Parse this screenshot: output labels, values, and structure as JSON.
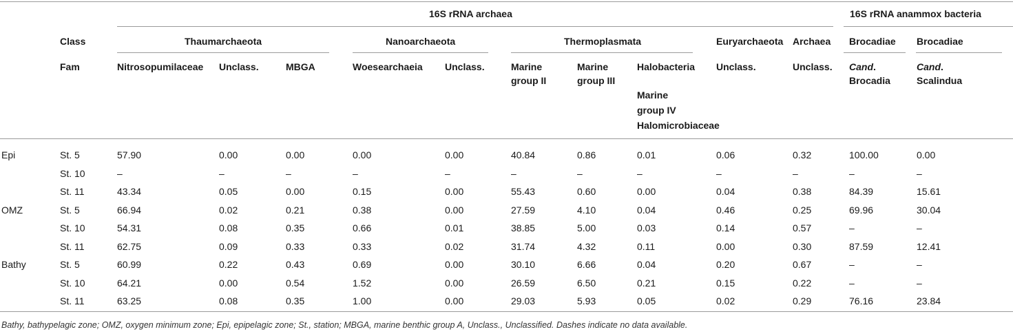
{
  "header": {
    "group_archaea": "16S rRNA archaea",
    "group_anammox": "16S rRNA anammox bacteria",
    "class_label": "Class",
    "fam_label": "Fam",
    "classes": {
      "thaum": "Thaumarchaeota",
      "nano": "Nanoarchaeota",
      "thermo": "Thermoplasmata",
      "eury": "Euryarchaeota",
      "archaea": "Archaea",
      "broc1": "Brocadiae",
      "broc2": "Brocadiae"
    },
    "families": {
      "nitroso": "Nitrosopumilaceae",
      "thaum_unclass": "Unclass.",
      "mbga": "MBGA",
      "woese": "Woesearchaeia",
      "nano_unclass": "Unclass.",
      "mg2_l1": "Marine",
      "mg2_l2": "group II",
      "mg3_l1": "Marine",
      "mg3_l2": "group III",
      "halo": "Halobacteria",
      "mg4_l1": "Marine",
      "mg4_l2": "group IV",
      "mg4_l3": "Halomicrobiaceae",
      "eury_unclass": "Unclass.",
      "arch_unclass": "Unclass.",
      "brocadia_pre": "Cand",
      "brocadia_dot": ".",
      "brocadia_name": "Brocadia",
      "scal_pre": "Cand",
      "scal_dot": ".",
      "scal_name": "Scalindua"
    }
  },
  "rows": [
    {
      "zone": "Epi",
      "station": "St. 5",
      "values": [
        "57.90",
        "0.00",
        "0.00",
        "0.00",
        "0.00",
        "40.84",
        "0.86",
        "0.01",
        "0.06",
        "0.32",
        "100.00",
        "0.00"
      ]
    },
    {
      "zone": "",
      "station": "St. 10",
      "values": [
        "–",
        "–",
        "–",
        "–",
        "–",
        "–",
        "–",
        "–",
        "–",
        "–",
        "–",
        "–"
      ]
    },
    {
      "zone": "",
      "station": "St. 11",
      "values": [
        "43.34",
        "0.05",
        "0.00",
        "0.15",
        "0.00",
        "55.43",
        "0.60",
        "0.00",
        "0.04",
        "0.38",
        "84.39",
        "15.61"
      ]
    },
    {
      "zone": "OMZ",
      "station": "St. 5",
      "values": [
        "66.94",
        "0.02",
        "0.21",
        "0.38",
        "0.00",
        "27.59",
        "4.10",
        "0.04",
        "0.46",
        "0.25",
        "69.96",
        "30.04"
      ]
    },
    {
      "zone": "",
      "station": "St. 10",
      "values": [
        "54.31",
        "0.08",
        "0.35",
        "0.66",
        "0.01",
        "38.85",
        "5.00",
        "0.03",
        "0.14",
        "0.57",
        "–",
        "–"
      ]
    },
    {
      "zone": "",
      "station": "St. 11",
      "values": [
        "62.75",
        "0.09",
        "0.33",
        "0.33",
        "0.02",
        "31.74",
        "4.32",
        "0.11",
        "0.00",
        "0.30",
        "87.59",
        "12.41"
      ]
    },
    {
      "zone": "Bathy",
      "station": "St. 5",
      "values": [
        "60.99",
        "0.22",
        "0.43",
        "0.69",
        "0.00",
        "30.10",
        "6.66",
        "0.04",
        "0.20",
        "0.67",
        "–",
        "–"
      ]
    },
    {
      "zone": "",
      "station": "St. 10",
      "values": [
        "64.21",
        "0.00",
        "0.54",
        "1.52",
        "0.00",
        "26.59",
        "6.50",
        "0.21",
        "0.15",
        "0.22",
        "–",
        "–"
      ]
    },
    {
      "zone": "",
      "station": "St. 11",
      "values": [
        "63.25",
        "0.08",
        "0.35",
        "1.00",
        "0.00",
        "29.03",
        "5.93",
        "0.05",
        "0.02",
        "0.29",
        "76.16",
        "23.84"
      ]
    }
  ],
  "footnote": "Bathy, bathypelagic zone; OMZ, oxygen minimum zone; Epi, epipelagic zone; St., station; MBGA, marine benthic group A, Unclass., Unclassified. Dashes indicate no data available."
}
